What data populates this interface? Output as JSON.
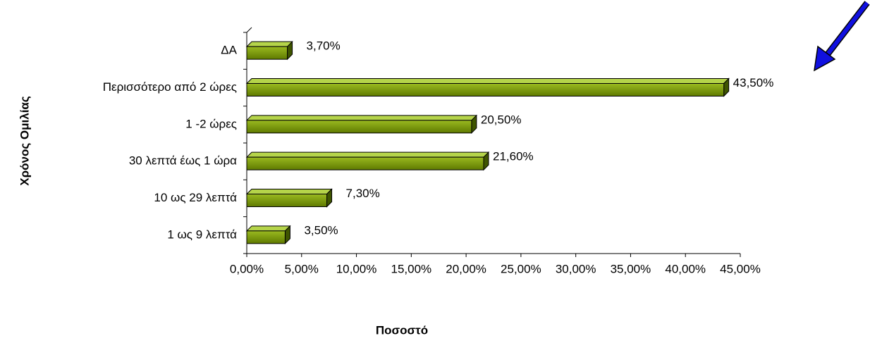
{
  "chart_data": {
    "type": "bar3d-horizontal",
    "categories": [
      "ΔΑ",
      "Περισσότερο από 2 ώρες",
      "1 -2 ώρες",
      "30 λεπτά έως 1 ώρα",
      "10 ως 29 λεπτά",
      "1 ως 9 λεπτά"
    ],
    "values": [
      3.7,
      43.5,
      20.5,
      21.6,
      7.3,
      3.5
    ],
    "value_labels": [
      "3,70%",
      "43,50%",
      "20,50%",
      "21,60%",
      "7,30%",
      "3,50%"
    ],
    "color": "#7a9a0a",
    "xlabel": "Ποσοστό",
    "ylabel": "Χρόνος Ομιλίας",
    "xlim": [
      0,
      45
    ],
    "xticks": [
      {
        "value": 0,
        "label": "0,00%"
      },
      {
        "value": 5,
        "label": "5,00%"
      },
      {
        "value": 10,
        "label": "10,00%"
      },
      {
        "value": 15,
        "label": "15,00%"
      },
      {
        "value": 20,
        "label": "20,00%"
      },
      {
        "value": 25,
        "label": "25,00%"
      },
      {
        "value": 30,
        "label": "30,00%"
      },
      {
        "value": 35,
        "label": "35,00%"
      },
      {
        "value": 40,
        "label": "40,00%"
      },
      {
        "value": 45,
        "label": "45,00%"
      }
    ]
  }
}
